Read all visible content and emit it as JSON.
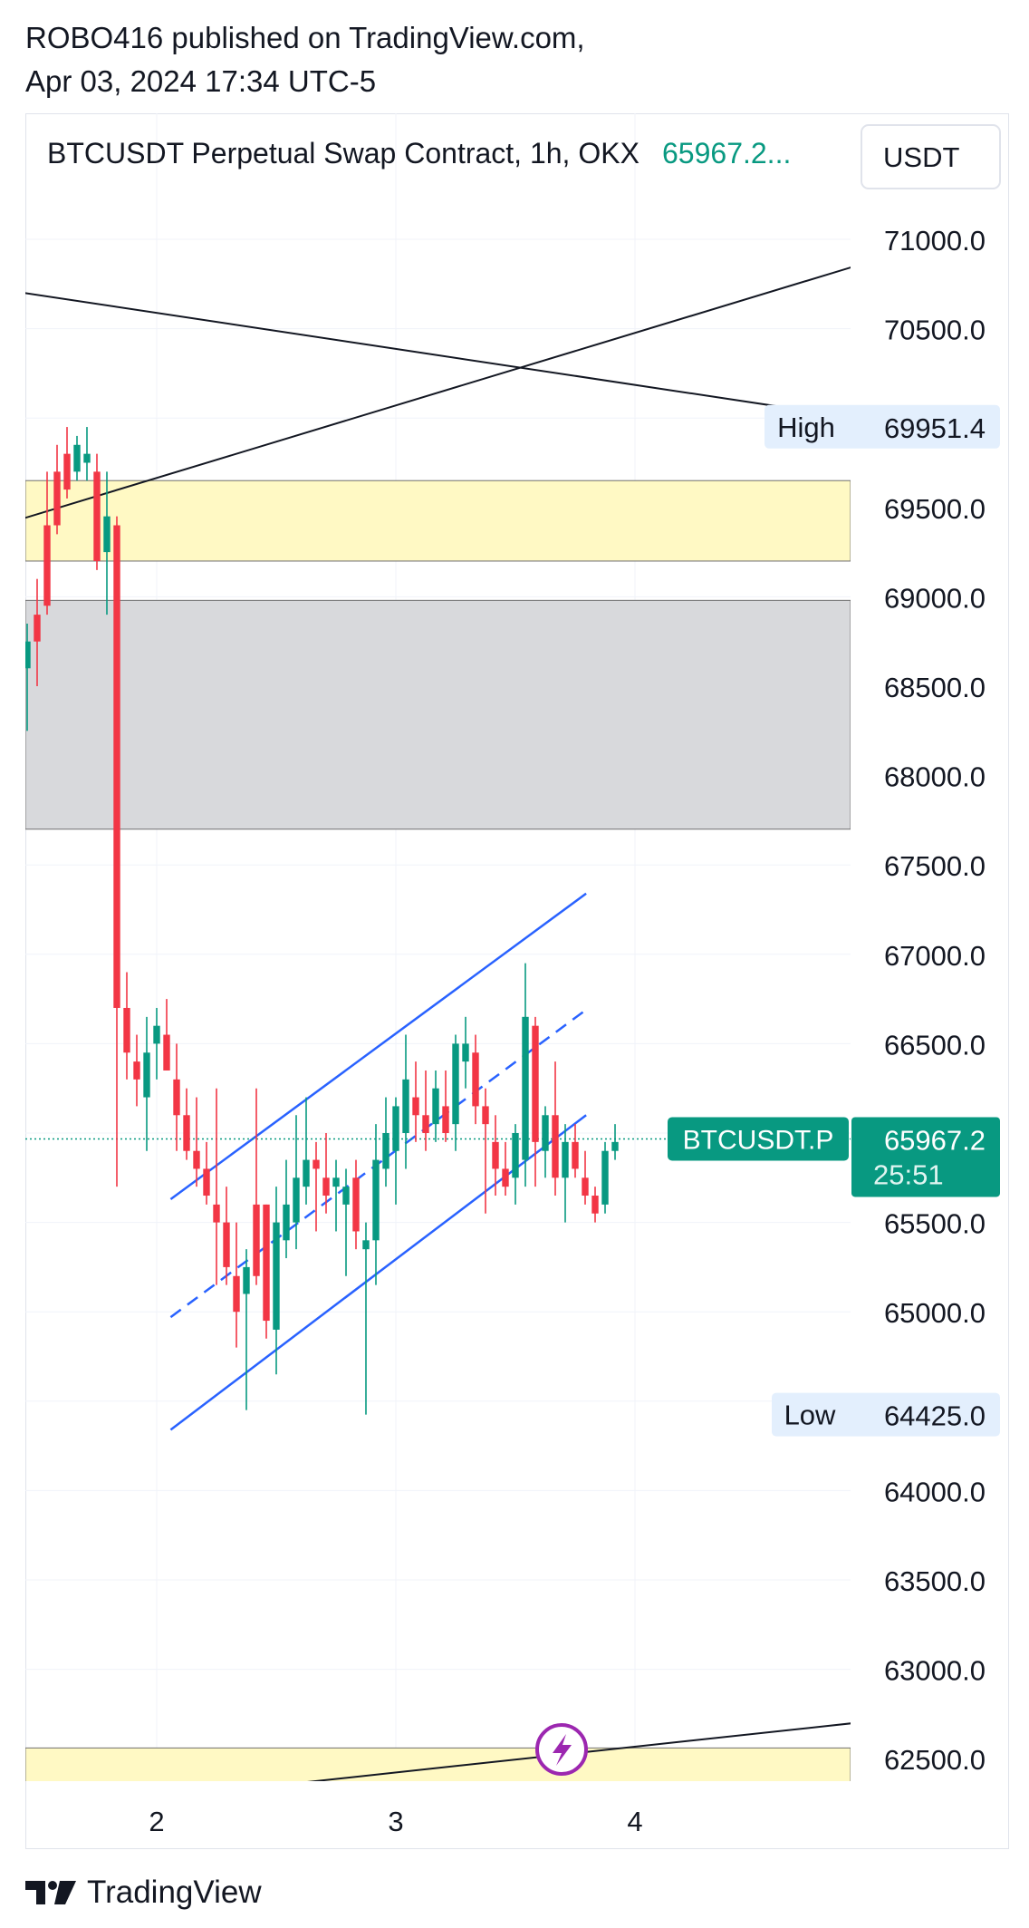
{
  "header": {
    "line1": "ROBO416 published on TradingView.com,",
    "line2": "Apr 03, 2024 17:34 UTC-5"
  },
  "chart_title": {
    "symbol_text": "BTCUSDT Perpetual Swap Contract, 1h, OKX",
    "last_price_text": "65967.2...",
    "currency_button": "USDT"
  },
  "footer": {
    "brand": "TradingView"
  },
  "colors": {
    "up": "#089981",
    "down": "#f23645",
    "channel": "#2962ff",
    "zone_yellow": "#fff9c4",
    "zone_gray": "#d8d9dc",
    "label_bg": "#e3effd",
    "lightning": "#9c27b0"
  },
  "chart_data": {
    "type": "candlestick",
    "symbol": "BTCUSDT.P",
    "timeframe": "1h",
    "exchange": "OKX",
    "currency": "USDT",
    "y_range": [
      62300,
      71300
    ],
    "y_ticks": [
      71000,
      70500,
      69500,
      69000,
      68500,
      68000,
      67500,
      67000,
      66500,
      65500,
      65000,
      64000,
      63500,
      63000,
      62500
    ],
    "y_tick_labels": [
      "71000.0",
      "70500.0",
      "69500.0",
      "69000.0",
      "68500.0",
      "68000.0",
      "67500.0",
      "67000.0",
      "66500.0",
      "65500.0",
      "65000.0",
      "64000.0",
      "63500.0",
      "63000.0",
      "62500.0"
    ],
    "x_ticks": [
      {
        "label": "2",
        "index": 14
      },
      {
        "label": "3",
        "index": 38
      },
      {
        "label": "4",
        "index": 62
      }
    ],
    "x_index_range": [
      0.7,
      84.1
    ],
    "candles": [
      [
        68700,
        68950,
        68050,
        68350
      ],
      [
        68600,
        68850,
        68250,
        68750
      ],
      [
        68900,
        69100,
        68500,
        68750
      ],
      [
        69400,
        69700,
        68900,
        68950
      ],
      [
        69700,
        69850,
        69350,
        69400
      ],
      [
        69800,
        69950,
        69550,
        69600
      ],
      [
        69700,
        69900,
        69650,
        69850
      ],
      [
        69750,
        69950,
        69650,
        69800
      ],
      [
        69700,
        69800,
        69150,
        69200
      ],
      [
        69250,
        69700,
        68900,
        69450
      ],
      [
        69400,
        69450,
        65700,
        66700
      ],
      [
        66700,
        66900,
        66300,
        66450
      ],
      [
        66400,
        66550,
        66150,
        66300
      ],
      [
        66200,
        66650,
        65900,
        66450
      ],
      [
        66500,
        66700,
        66300,
        66600
      ],
      [
        66550,
        66750,
        66350,
        66350
      ],
      [
        66300,
        66500,
        65900,
        66100
      ],
      [
        66100,
        66250,
        65850,
        65900
      ],
      [
        65900,
        66200,
        65700,
        65800
      ],
      [
        65800,
        65950,
        65600,
        65650
      ],
      [
        65600,
        66250,
        65150,
        65500
      ],
      [
        65500,
        65700,
        65150,
        65250
      ],
      [
        65200,
        65500,
        64800,
        65000
      ],
      [
        65100,
        65350,
        64450,
        65250
      ],
      [
        65600,
        66250,
        65150,
        65200
      ],
      [
        65600,
        65600,
        64850,
        64950
      ],
      [
        64900,
        65700,
        64650,
        65500
      ],
      [
        65400,
        65850,
        65300,
        65600
      ],
      [
        65500,
        66100,
        65350,
        65750
      ],
      [
        65700,
        66200,
        65600,
        65850
      ],
      [
        65850,
        65950,
        65450,
        65800
      ],
      [
        65750,
        66000,
        65550,
        65650
      ],
      [
        65700,
        65850,
        65450,
        65750
      ],
      [
        65600,
        65800,
        65200,
        65700
      ],
      [
        65750,
        65850,
        65350,
        65450
      ],
      [
        65350,
        65500,
        64425,
        65400
      ],
      [
        65400,
        66050,
        65150,
        65850
      ],
      [
        65800,
        66200,
        65700,
        66000
      ],
      [
        65900,
        66200,
        65600,
        66150
      ],
      [
        66000,
        66550,
        65800,
        66300
      ],
      [
        66200,
        66400,
        65950,
        66100
      ],
      [
        66100,
        66350,
        65900,
        66000
      ],
      [
        66050,
        66350,
        65950,
        66250
      ],
      [
        66150,
        66350,
        65950,
        66000
      ],
      [
        66050,
        66550,
        65900,
        66500
      ],
      [
        66400,
        66650,
        66250,
        66500
      ],
      [
        66450,
        66550,
        66050,
        66150
      ],
      [
        66150,
        66250,
        65550,
        66050
      ],
      [
        65950,
        66100,
        65650,
        65800
      ],
      [
        65800,
        65950,
        65650,
        65700
      ],
      [
        65750,
        66050,
        65600,
        66000
      ],
      [
        65850,
        66950,
        65700,
        66650
      ],
      [
        66600,
        66650,
        65700,
        65950
      ],
      [
        65900,
        66150,
        65750,
        66100
      ],
      [
        66100,
        66400,
        65650,
        65750
      ],
      [
        65750,
        66050,
        65500,
        65950
      ],
      [
        65950,
        66050,
        65750,
        65800
      ],
      [
        65750,
        65900,
        65600,
        65650
      ],
      [
        65650,
        65700,
        65500,
        65550
      ],
      [
        65600,
        65950,
        65550,
        65900
      ],
      [
        65900,
        66050,
        65850,
        65950
      ]
    ],
    "high_marker": {
      "label": "High",
      "value": "69951.4",
      "price": 69951.4
    },
    "low_marker": {
      "label": "Low",
      "value": "64425.0",
      "price": 64425.0
    },
    "current_price": {
      "symbol": "BTCUSDT.P",
      "value": "65967.2",
      "countdown": "25:51",
      "price": 65967.2
    },
    "zones": [
      {
        "name": "supply-zone-yellow",
        "from": 69200,
        "to": 69650
      },
      {
        "name": "gray-zone",
        "from": 67700,
        "to": 68980
      },
      {
        "name": "bottom-zone-yellow",
        "from": 62300,
        "to": 62560
      }
    ],
    "trend_lines": [
      {
        "name": "descending-trendline",
        "from": [
          0.7,
          70700
        ],
        "to": [
          84.1,
          70000
        ]
      },
      {
        "name": "ascending-trendline",
        "from": [
          0.7,
          69440
        ],
        "to": [
          84.1,
          70850
        ]
      },
      {
        "name": "lower-rising-trendline",
        "from": [
          17.6,
          62300
        ],
        "to": [
          84.1,
          62700
        ]
      }
    ],
    "channel": {
      "upper": {
        "from": [
          15.4,
          65630
        ],
        "to": [
          57.1,
          67340
        ]
      },
      "middle": {
        "from": [
          15.4,
          64970
        ],
        "to": [
          57.1,
          66690
        ]
      },
      "lower": {
        "from": [
          15.4,
          64340
        ],
        "to": [
          57.1,
          66100
        ]
      }
    }
  }
}
